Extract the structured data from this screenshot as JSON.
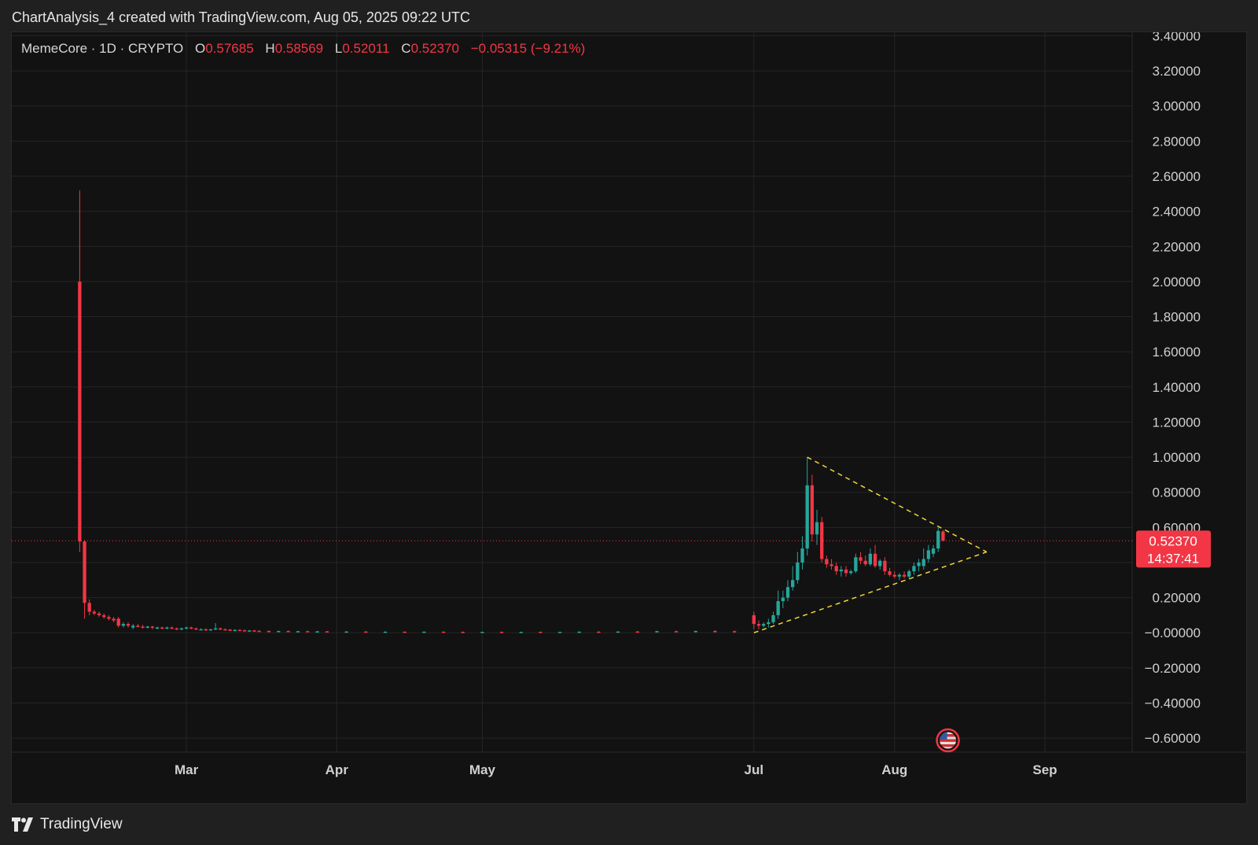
{
  "header": {
    "credit": "ChartAnalysis_4 created with TradingView.com, Aug 05, 2025 09:22 UTC"
  },
  "legend": {
    "symbol": "MemeCore · 1D · CRYPTO",
    "o_key": "O",
    "o_val": "0.57685",
    "h_key": "H",
    "h_val": "0.58569",
    "l_key": "L",
    "l_val": "0.52011",
    "c_key": "C",
    "c_val": "0.52370",
    "change": "−0.05315 (−9.21%)"
  },
  "footer": {
    "brand": "TradingView"
  },
  "colors": {
    "up": "#26a69a",
    "down": "#f23645",
    "trendline": "#f0d53a",
    "background": "#121212",
    "grid": "#252525",
    "axis_text": "#d0d0d0",
    "price_label_bg": "#f23645"
  },
  "chart_data": {
    "type": "candlestick",
    "interval": "1D",
    "ylim": [
      -0.68,
      3.42
    ],
    "y_ticks": [
      {
        "value": 3.4,
        "label": "3.40000"
      },
      {
        "value": 3.2,
        "label": "3.20000"
      },
      {
        "value": 3.0,
        "label": "3.00000"
      },
      {
        "value": 2.8,
        "label": "2.80000"
      },
      {
        "value": 2.6,
        "label": "2.60000"
      },
      {
        "value": 2.4,
        "label": "2.40000"
      },
      {
        "value": 2.2,
        "label": "2.20000"
      },
      {
        "value": 2.0,
        "label": "2.00000"
      },
      {
        "value": 1.8,
        "label": "1.80000"
      },
      {
        "value": 1.6,
        "label": "1.60000"
      },
      {
        "value": 1.4,
        "label": "1.40000"
      },
      {
        "value": 1.2,
        "label": "1.20000"
      },
      {
        "value": 1.0,
        "label": "1.00000"
      },
      {
        "value": 0.8,
        "label": "0.80000"
      },
      {
        "value": 0.6,
        "label": "0.60000"
      },
      {
        "value": 0.4,
        "label": "0.40000"
      },
      {
        "value": 0.2,
        "label": "0.20000"
      },
      {
        "value": 0.0,
        "label": "−0.00000"
      },
      {
        "value": -0.2,
        "label": "−0.20000"
      },
      {
        "value": -0.4,
        "label": "−0.40000"
      },
      {
        "value": -0.6,
        "label": "−0.60000"
      }
    ],
    "x_range": [
      "2025-01-24",
      "2025-09-12"
    ],
    "x_ticks": [
      {
        "date": "2025-03-01",
        "label": "Mar"
      },
      {
        "date": "2025-04-01",
        "label": "Apr"
      },
      {
        "date": "2025-05-01",
        "label": "May"
      },
      {
        "date": "2025-06-26",
        "label": "Jul"
      },
      {
        "date": "2025-07-25",
        "label": "Aug"
      },
      {
        "date": "2025-08-25",
        "label": "Sep"
      }
    ],
    "candles": [
      {
        "date": "2025-02-07",
        "o": 2.0,
        "h": 2.52,
        "l": 0.46,
        "c": 0.52
      },
      {
        "date": "2025-02-08",
        "o": 0.52,
        "h": 0.53,
        "l": 0.08,
        "c": 0.17
      },
      {
        "date": "2025-02-09",
        "o": 0.17,
        "h": 0.19,
        "l": 0.1,
        "c": 0.12
      },
      {
        "date": "2025-02-10",
        "o": 0.12,
        "h": 0.13,
        "l": 0.1,
        "c": 0.11
      },
      {
        "date": "2025-02-11",
        "o": 0.11,
        "h": 0.12,
        "l": 0.09,
        "c": 0.1
      },
      {
        "date": "2025-02-12",
        "o": 0.1,
        "h": 0.11,
        "l": 0.08,
        "c": 0.09
      },
      {
        "date": "2025-02-13",
        "o": 0.09,
        "h": 0.1,
        "l": 0.07,
        "c": 0.08
      },
      {
        "date": "2025-02-14",
        "o": 0.08,
        "h": 0.09,
        "l": 0.06,
        "c": 0.07
      },
      {
        "date": "2025-02-15",
        "o": 0.08,
        "h": 0.09,
        "l": 0.03,
        "c": 0.04
      },
      {
        "date": "2025-02-16",
        "o": 0.04,
        "h": 0.06,
        "l": 0.03,
        "c": 0.05
      },
      {
        "date": "2025-02-17",
        "o": 0.05,
        "h": 0.06,
        "l": 0.03,
        "c": 0.04
      },
      {
        "date": "2025-02-18",
        "o": 0.03,
        "h": 0.05,
        "l": 0.02,
        "c": 0.04
      },
      {
        "date": "2025-02-19",
        "o": 0.04,
        "h": 0.05,
        "l": 0.03,
        "c": 0.035
      },
      {
        "date": "2025-02-20",
        "o": 0.035,
        "h": 0.045,
        "l": 0.025,
        "c": 0.03
      },
      {
        "date": "2025-02-21",
        "o": 0.03,
        "h": 0.04,
        "l": 0.025,
        "c": 0.035
      },
      {
        "date": "2025-02-22",
        "o": 0.035,
        "h": 0.04,
        "l": 0.02,
        "c": 0.03
      },
      {
        "date": "2025-02-23",
        "o": 0.03,
        "h": 0.035,
        "l": 0.02,
        "c": 0.03
      },
      {
        "date": "2025-02-24",
        "o": 0.03,
        "h": 0.035,
        "l": 0.02,
        "c": 0.025
      },
      {
        "date": "2025-02-25",
        "o": 0.025,
        "h": 0.035,
        "l": 0.02,
        "c": 0.03
      },
      {
        "date": "2025-02-26",
        "o": 0.03,
        "h": 0.035,
        "l": 0.02,
        "c": 0.025
      },
      {
        "date": "2025-02-27",
        "o": 0.025,
        "h": 0.03,
        "l": 0.015,
        "c": 0.02
      },
      {
        "date": "2025-02-28",
        "o": 0.02,
        "h": 0.03,
        "l": 0.015,
        "c": 0.025
      },
      {
        "date": "2025-03-01",
        "o": 0.025,
        "h": 0.035,
        "l": 0.02,
        "c": 0.03
      },
      {
        "date": "2025-03-02",
        "o": 0.03,
        "h": 0.035,
        "l": 0.02,
        "c": 0.025
      },
      {
        "date": "2025-03-03",
        "o": 0.025,
        "h": 0.03,
        "l": 0.015,
        "c": 0.02
      },
      {
        "date": "2025-03-04",
        "o": 0.02,
        "h": 0.025,
        "l": 0.015,
        "c": 0.02
      },
      {
        "date": "2025-03-05",
        "o": 0.02,
        "h": 0.025,
        "l": 0.01,
        "c": 0.018
      },
      {
        "date": "2025-03-06",
        "o": 0.018,
        "h": 0.022,
        "l": 0.012,
        "c": 0.02
      },
      {
        "date": "2025-03-07",
        "o": 0.02,
        "h": 0.055,
        "l": 0.015,
        "c": 0.025
      },
      {
        "date": "2025-03-08",
        "o": 0.025,
        "h": 0.03,
        "l": 0.015,
        "c": 0.02
      },
      {
        "date": "2025-03-09",
        "o": 0.02,
        "h": 0.025,
        "l": 0.012,
        "c": 0.018
      },
      {
        "date": "2025-03-10",
        "o": 0.018,
        "h": 0.022,
        "l": 0.01,
        "c": 0.015
      },
      {
        "date": "2025-03-11",
        "o": 0.015,
        "h": 0.02,
        "l": 0.01,
        "c": 0.016
      },
      {
        "date": "2025-03-12",
        "o": 0.016,
        "h": 0.02,
        "l": 0.01,
        "c": 0.014
      },
      {
        "date": "2025-03-13",
        "o": 0.014,
        "h": 0.018,
        "l": 0.008,
        "c": 0.012
      },
      {
        "date": "2025-03-14",
        "o": 0.012,
        "h": 0.016,
        "l": 0.008,
        "c": 0.013
      },
      {
        "date": "2025-03-15",
        "o": 0.013,
        "h": 0.016,
        "l": 0.008,
        "c": 0.011
      },
      {
        "date": "2025-03-16",
        "o": 0.011,
        "h": 0.014,
        "l": 0.006,
        "c": 0.01
      },
      {
        "date": "2025-03-18",
        "o": 0.01,
        "h": 0.014,
        "l": 0.006,
        "c": 0.009
      },
      {
        "date": "2025-03-20",
        "o": 0.009,
        "h": 0.012,
        "l": 0.005,
        "c": 0.01
      },
      {
        "date": "2025-03-22",
        "o": 0.01,
        "h": 0.013,
        "l": 0.005,
        "c": 0.008
      },
      {
        "date": "2025-03-24",
        "o": 0.008,
        "h": 0.011,
        "l": 0.004,
        "c": 0.009
      },
      {
        "date": "2025-03-26",
        "o": 0.009,
        "h": 0.012,
        "l": 0.004,
        "c": 0.007
      },
      {
        "date": "2025-03-28",
        "o": 0.007,
        "h": 0.01,
        "l": 0.003,
        "c": 0.008
      },
      {
        "date": "2025-03-30",
        "o": 0.008,
        "h": 0.01,
        "l": 0.003,
        "c": 0.006
      },
      {
        "date": "2025-04-03",
        "o": 0.006,
        "h": 0.009,
        "l": 0.002,
        "c": 0.007
      },
      {
        "date": "2025-04-07",
        "o": 0.007,
        "h": 0.009,
        "l": 0.002,
        "c": 0.005
      },
      {
        "date": "2025-04-11",
        "o": 0.005,
        "h": 0.008,
        "l": 0.002,
        "c": 0.006
      },
      {
        "date": "2025-04-15",
        "o": 0.006,
        "h": 0.008,
        "l": 0.002,
        "c": 0.005
      },
      {
        "date": "2025-04-19",
        "o": 0.005,
        "h": 0.007,
        "l": 0.001,
        "c": 0.006
      },
      {
        "date": "2025-04-23",
        "o": 0.006,
        "h": 0.008,
        "l": 0.001,
        "c": 0.005
      },
      {
        "date": "2025-04-27",
        "o": 0.005,
        "h": 0.007,
        "l": 0.001,
        "c": 0.004
      },
      {
        "date": "2025-05-01",
        "o": 0.004,
        "h": 0.006,
        "l": 0.001,
        "c": 0.005
      },
      {
        "date": "2025-05-05",
        "o": 0.005,
        "h": 0.007,
        "l": 0.001,
        "c": 0.004
      },
      {
        "date": "2025-05-09",
        "o": 0.004,
        "h": 0.006,
        "l": 0.001,
        "c": 0.005
      },
      {
        "date": "2025-05-13",
        "o": 0.005,
        "h": 0.007,
        "l": 0.001,
        "c": 0.004
      },
      {
        "date": "2025-05-17",
        "o": 0.004,
        "h": 0.006,
        "l": 0.001,
        "c": 0.005
      },
      {
        "date": "2025-05-21",
        "o": 0.005,
        "h": 0.008,
        "l": 0.001,
        "c": 0.006
      },
      {
        "date": "2025-05-25",
        "o": 0.006,
        "h": 0.009,
        "l": 0.001,
        "c": 0.005
      },
      {
        "date": "2025-05-29",
        "o": 0.005,
        "h": 0.008,
        "l": 0.001,
        "c": 0.007
      },
      {
        "date": "2025-06-02",
        "o": 0.007,
        "h": 0.01,
        "l": 0.002,
        "c": 0.006
      },
      {
        "date": "2025-06-06",
        "o": 0.006,
        "h": 0.011,
        "l": 0.002,
        "c": 0.009
      },
      {
        "date": "2025-06-10",
        "o": 0.009,
        "h": 0.012,
        "l": 0.003,
        "c": 0.008
      },
      {
        "date": "2025-06-14",
        "o": 0.008,
        "h": 0.012,
        "l": 0.002,
        "c": 0.01
      },
      {
        "date": "2025-06-18",
        "o": 0.01,
        "h": 0.014,
        "l": 0.002,
        "c": 0.009
      },
      {
        "date": "2025-06-22",
        "o": 0.009,
        "h": 0.012,
        "l": 0.0,
        "c": 0.006
      },
      {
        "date": "2025-06-26",
        "o": 0.1,
        "h": 0.12,
        "l": 0.02,
        "c": 0.05
      },
      {
        "date": "2025-06-27",
        "o": 0.05,
        "h": 0.07,
        "l": 0.02,
        "c": 0.04
      },
      {
        "date": "2025-06-28",
        "o": 0.04,
        "h": 0.06,
        "l": 0.03,
        "c": 0.05
      },
      {
        "date": "2025-06-29",
        "o": 0.05,
        "h": 0.08,
        "l": 0.03,
        "c": 0.06
      },
      {
        "date": "2025-06-30",
        "o": 0.06,
        "h": 0.12,
        "l": 0.05,
        "c": 0.1
      },
      {
        "date": "2025-07-01",
        "o": 0.1,
        "h": 0.24,
        "l": 0.08,
        "c": 0.18
      },
      {
        "date": "2025-07-02",
        "o": 0.18,
        "h": 0.24,
        "l": 0.14,
        "c": 0.2
      },
      {
        "date": "2025-07-03",
        "o": 0.2,
        "h": 0.3,
        "l": 0.18,
        "c": 0.26
      },
      {
        "date": "2025-07-04",
        "o": 0.26,
        "h": 0.38,
        "l": 0.24,
        "c": 0.3
      },
      {
        "date": "2025-07-05",
        "o": 0.3,
        "h": 0.46,
        "l": 0.28,
        "c": 0.4
      },
      {
        "date": "2025-07-06",
        "o": 0.4,
        "h": 0.55,
        "l": 0.36,
        "c": 0.48
      },
      {
        "date": "2025-07-07",
        "o": 0.48,
        "h": 1.0,
        "l": 0.44,
        "c": 0.84
      },
      {
        "date": "2025-07-08",
        "o": 0.84,
        "h": 0.9,
        "l": 0.52,
        "c": 0.56
      },
      {
        "date": "2025-07-09",
        "o": 0.56,
        "h": 0.7,
        "l": 0.5,
        "c": 0.63
      },
      {
        "date": "2025-07-10",
        "o": 0.63,
        "h": 0.66,
        "l": 0.4,
        "c": 0.42
      },
      {
        "date": "2025-07-11",
        "o": 0.42,
        "h": 0.44,
        "l": 0.37,
        "c": 0.39
      },
      {
        "date": "2025-07-12",
        "o": 0.39,
        "h": 0.42,
        "l": 0.36,
        "c": 0.38
      },
      {
        "date": "2025-07-13",
        "o": 0.38,
        "h": 0.4,
        "l": 0.33,
        "c": 0.35
      },
      {
        "date": "2025-07-14",
        "o": 0.35,
        "h": 0.38,
        "l": 0.32,
        "c": 0.36
      },
      {
        "date": "2025-07-15",
        "o": 0.36,
        "h": 0.38,
        "l": 0.32,
        "c": 0.34
      },
      {
        "date": "2025-07-16",
        "o": 0.34,
        "h": 0.36,
        "l": 0.33,
        "c": 0.35
      },
      {
        "date": "2025-07-17",
        "o": 0.35,
        "h": 0.45,
        "l": 0.34,
        "c": 0.43
      },
      {
        "date": "2025-07-18",
        "o": 0.43,
        "h": 0.46,
        "l": 0.39,
        "c": 0.41
      },
      {
        "date": "2025-07-19",
        "o": 0.41,
        "h": 0.44,
        "l": 0.38,
        "c": 0.39
      },
      {
        "date": "2025-07-20",
        "o": 0.39,
        "h": 0.48,
        "l": 0.38,
        "c": 0.45
      },
      {
        "date": "2025-07-21",
        "o": 0.45,
        "h": 0.5,
        "l": 0.37,
        "c": 0.38
      },
      {
        "date": "2025-07-22",
        "o": 0.38,
        "h": 0.42,
        "l": 0.36,
        "c": 0.41
      },
      {
        "date": "2025-07-23",
        "o": 0.41,
        "h": 0.43,
        "l": 0.33,
        "c": 0.35
      },
      {
        "date": "2025-07-24",
        "o": 0.35,
        "h": 0.37,
        "l": 0.32,
        "c": 0.33
      },
      {
        "date": "2025-07-25",
        "o": 0.33,
        "h": 0.35,
        "l": 0.31,
        "c": 0.32
      },
      {
        "date": "2025-07-26",
        "o": 0.32,
        "h": 0.34,
        "l": 0.3,
        "c": 0.33
      },
      {
        "date": "2025-07-27",
        "o": 0.33,
        "h": 0.35,
        "l": 0.31,
        "c": 0.32
      },
      {
        "date": "2025-07-28",
        "o": 0.32,
        "h": 0.36,
        "l": 0.31,
        "c": 0.35
      },
      {
        "date": "2025-07-29",
        "o": 0.35,
        "h": 0.4,
        "l": 0.33,
        "c": 0.38
      },
      {
        "date": "2025-07-30",
        "o": 0.38,
        "h": 0.42,
        "l": 0.35,
        "c": 0.4
      },
      {
        "date": "2025-07-31",
        "o": 0.38,
        "h": 0.48,
        "l": 0.36,
        "c": 0.42
      },
      {
        "date": "2025-08-01",
        "o": 0.42,
        "h": 0.5,
        "l": 0.4,
        "c": 0.47
      },
      {
        "date": "2025-08-02",
        "o": 0.45,
        "h": 0.5,
        "l": 0.43,
        "c": 0.48
      },
      {
        "date": "2025-08-03",
        "o": 0.48,
        "h": 0.6,
        "l": 0.46,
        "c": 0.58
      },
      {
        "date": "2025-08-04",
        "o": 0.57685,
        "h": 0.58569,
        "l": 0.52011,
        "c": 0.5237
      }
    ],
    "trendlines": [
      {
        "from": {
          "date": "2025-07-07",
          "price": 1.0
        },
        "to": {
          "date": "2025-08-13",
          "price": 0.46
        }
      },
      {
        "from": {
          "date": "2025-06-26",
          "price": 0.0
        },
        "to": {
          "date": "2025-08-13",
          "price": 0.46
        }
      }
    ],
    "last_price": {
      "price": 0.5237,
      "label": "0.52370",
      "countdown": "14:37:41"
    },
    "event_marker": {
      "date": "2025-08-05",
      "icon": "us-flag-icon"
    }
  }
}
